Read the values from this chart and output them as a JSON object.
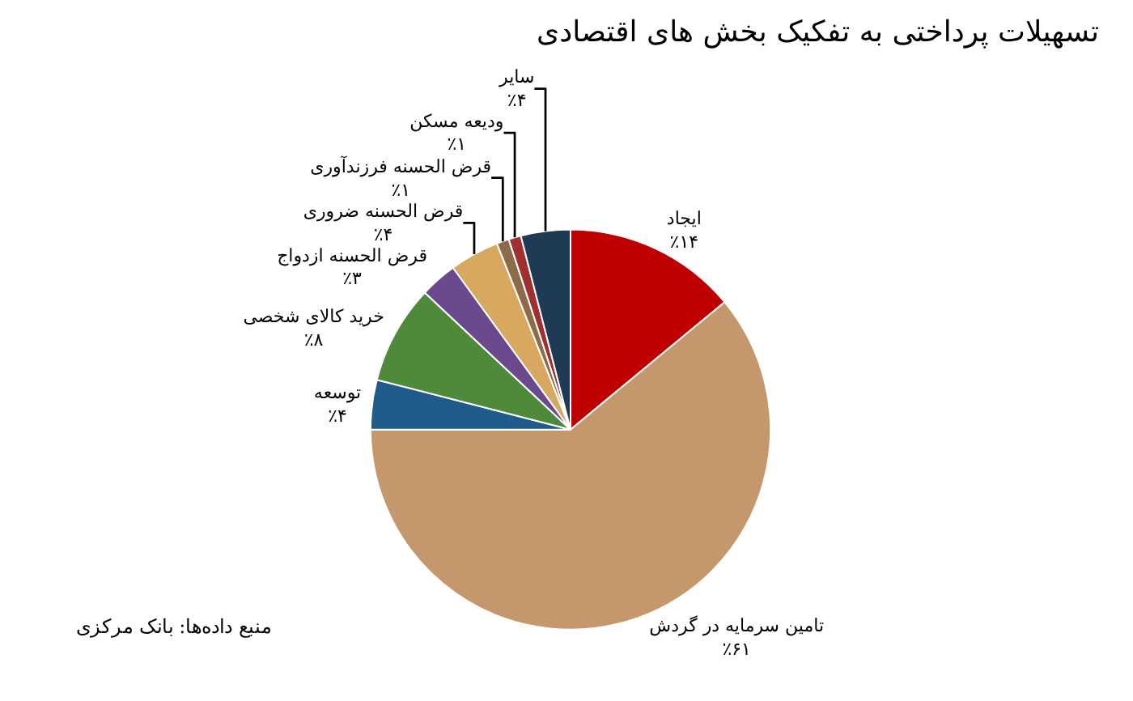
{
  "chart_data": {
    "type": "pie",
    "title": "تسهیلات پرداختی به تفکیک بخش های اقتصادی",
    "categories": [
      "ایجاد",
      "تامین سرمایه در گردش",
      "توسعه",
      "خرید کالای شخصی",
      "قرض الحسنه ازدواج",
      "قرض الحسنه ضروری",
      "قرض الحسنه فرزندآوری",
      "ودیعه مسکن",
      "سایر"
    ],
    "values": [
      14,
      61,
      4,
      8,
      3,
      4,
      1,
      1,
      4
    ],
    "value_labels": [
      "٪۱۴",
      "٪۶۱",
      "٪۴",
      "٪۸",
      "٪۳",
      "٪۴",
      "٪۱",
      "٪۱",
      "٪۴"
    ],
    "colors": [
      "#c00000",
      "#c4976c",
      "#1f5c8c",
      "#4e8a3a",
      "#6a4a8c",
      "#d8a860",
      "#8c6a4a",
      "#a03030",
      "#1f3a55"
    ],
    "legend": false,
    "annotations": [
      "منبع داده‌ها: بانک مرکزی"
    ]
  }
}
